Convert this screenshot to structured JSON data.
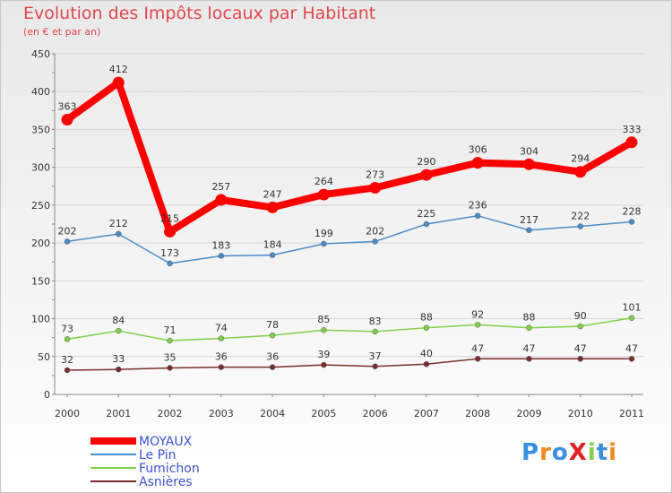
{
  "title": "Evolution des Impôts locaux par Habitant",
  "subtitle": "(en € et par an)",
  "logo": "ProXiti",
  "chart_data": {
    "type": "line",
    "title": "Evolution des Impôts locaux par Habitant",
    "subtitle": "(en € et par an)",
    "xlabel": "",
    "ylabel": "",
    "x": [
      "2000",
      "2001",
      "2002",
      "2003",
      "2004",
      "2005",
      "2006",
      "2007",
      "2008",
      "2009",
      "2010",
      "2011"
    ],
    "ylim": [
      0,
      450
    ],
    "yticks": [
      0,
      50,
      100,
      150,
      200,
      250,
      300,
      350,
      400,
      450
    ],
    "grid": "horizontal",
    "legend_position": "bottom-left",
    "series": [
      {
        "name": "MOYAUX",
        "color": "#ff0000",
        "values": [
          363,
          412,
          215,
          257,
          247,
          264,
          273,
          290,
          306,
          304,
          294,
          333
        ]
      },
      {
        "name": "Le Pin",
        "color": "#4a8cc8",
        "values": [
          202,
          212,
          173,
          183,
          184,
          199,
          202,
          225,
          236,
          217,
          222,
          228
        ]
      },
      {
        "name": "Fumichon",
        "color": "#7fd14a",
        "values": [
          73,
          84,
          71,
          74,
          78,
          85,
          83,
          88,
          92,
          88,
          90,
          101
        ]
      },
      {
        "name": "Asnières",
        "color": "#7a2e2e",
        "values": [
          32,
          33,
          35,
          36,
          36,
          39,
          37,
          40,
          47,
          47,
          47,
          47
        ]
      }
    ]
  }
}
